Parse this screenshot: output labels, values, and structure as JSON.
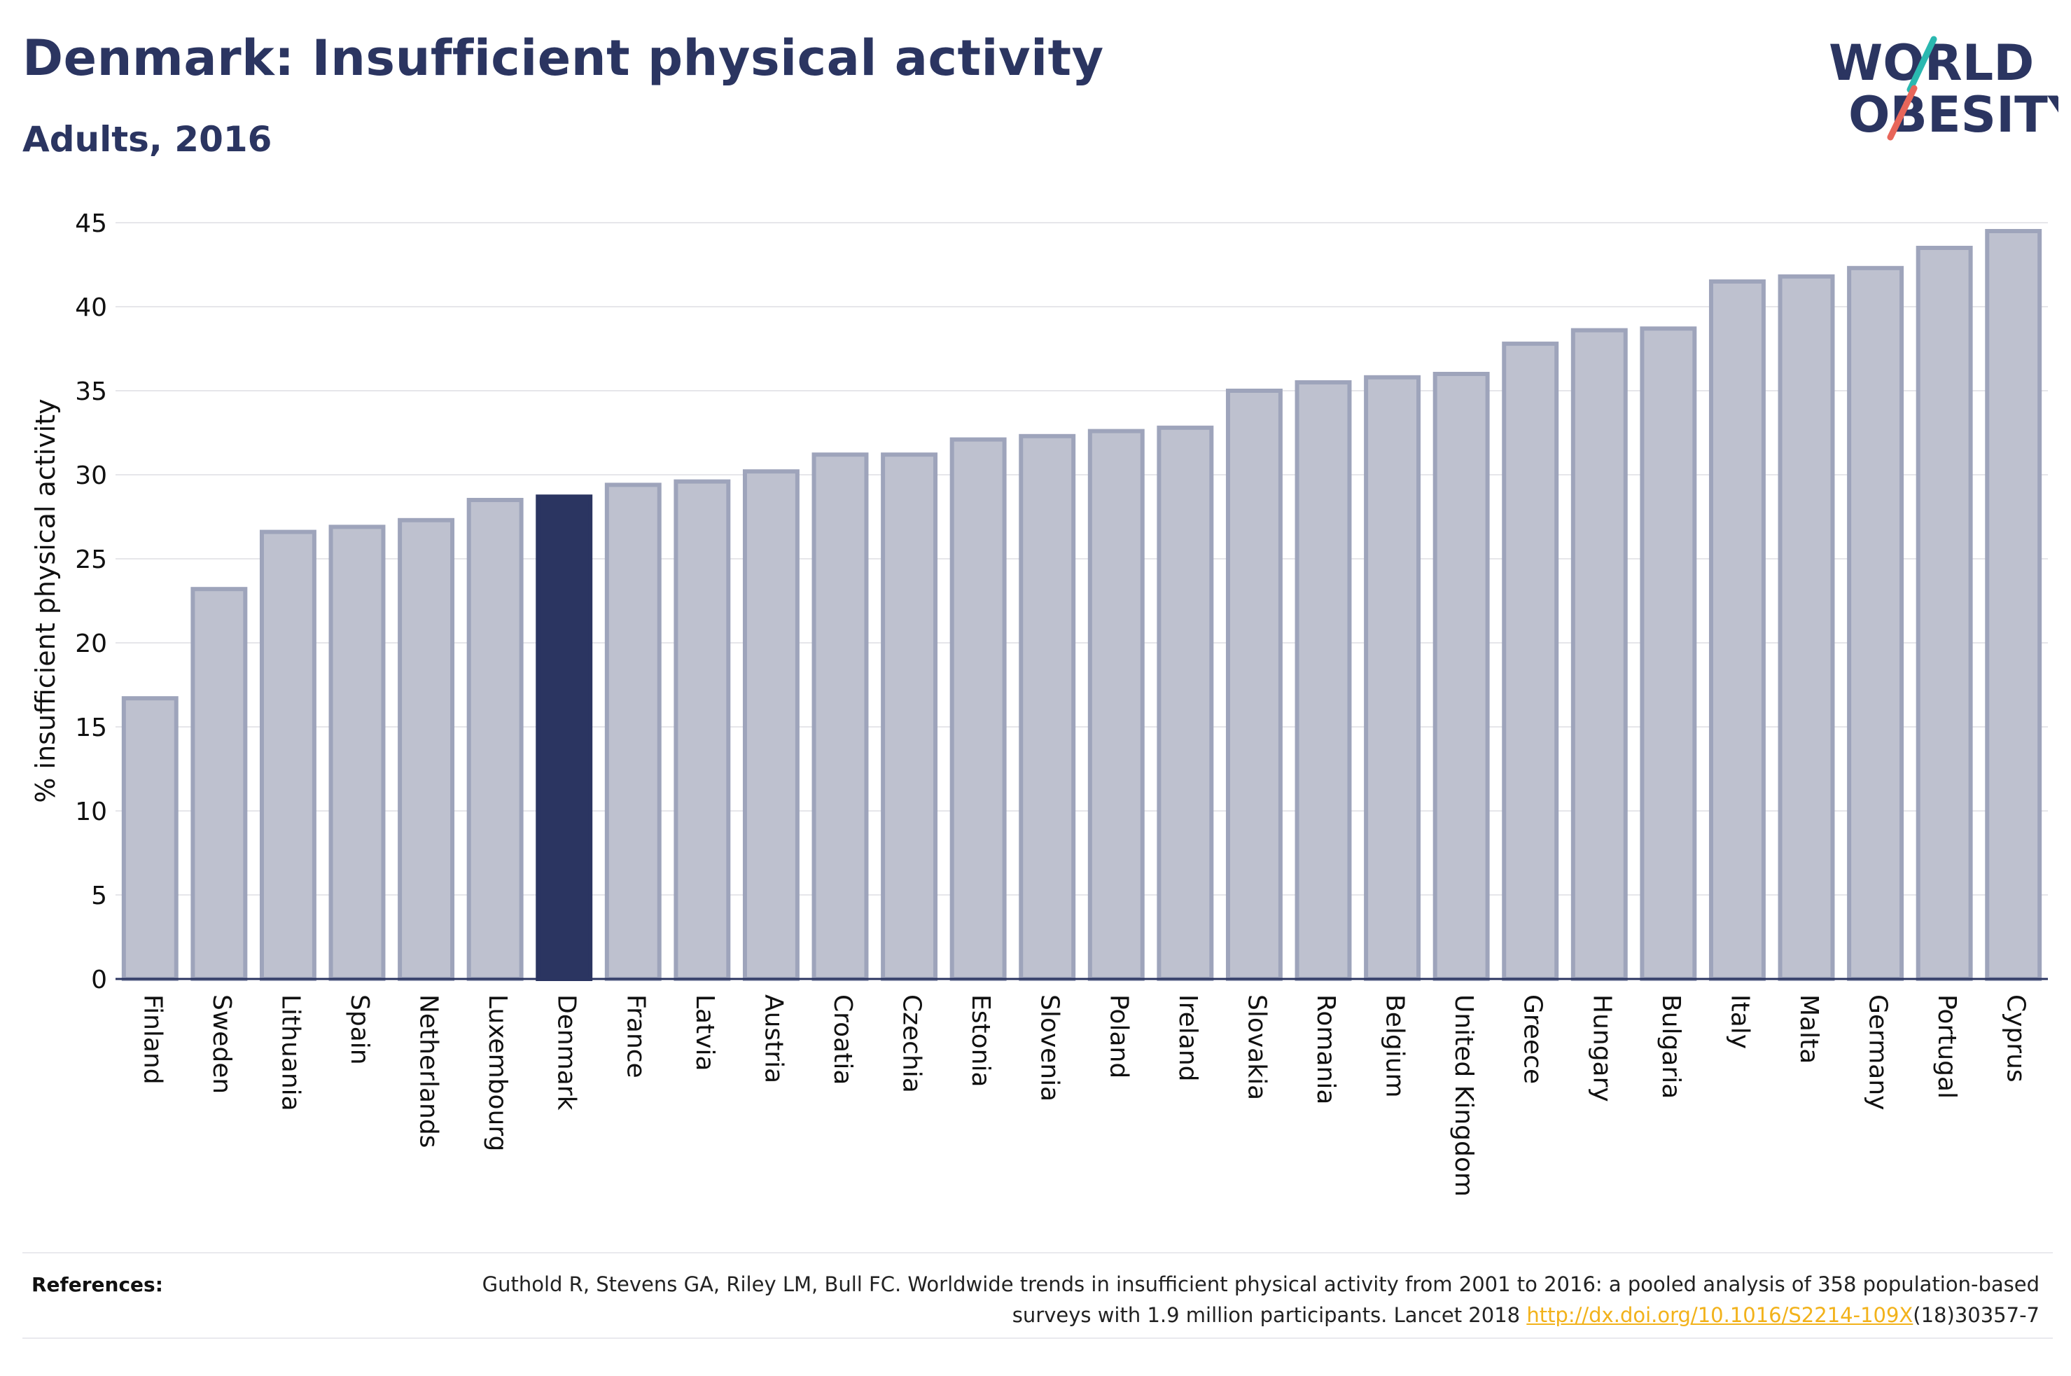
{
  "header": {
    "title": "Denmark: Insufficient physical activity",
    "subtitle": "Adults, 2016",
    "logo_text_line1": "WORLD",
    "logo_text_line2": "OBESITY"
  },
  "colors": {
    "bar_default": "#bec1cf",
    "bar_default_border": "#9ea4bb",
    "bar_highlight": "#2b3561",
    "title": "#2b3561",
    "link": "#f2b21b",
    "logo_teal": "#2ab8b0",
    "logo_coral": "#e8665a"
  },
  "chart_data": {
    "type": "bar",
    "title": "Denmark: Insufficient physical activity",
    "subtitle": "Adults, 2016",
    "ylabel": "% insufficient physical activity",
    "xlabel": "",
    "ylim": [
      0,
      45
    ],
    "yticks": [
      0,
      5,
      10,
      15,
      20,
      25,
      30,
      35,
      40,
      45
    ],
    "grid": true,
    "highlight": "Denmark",
    "categories": [
      "Finland",
      "Sweden",
      "Lithuania",
      "Spain",
      "Netherlands",
      "Luxembourg",
      "Denmark",
      "France",
      "Latvia",
      "Austria",
      "Croatia",
      "Czechia",
      "Estonia",
      "Slovenia",
      "Poland",
      "Ireland",
      "Slovakia",
      "Romania",
      "Belgium",
      "United Kingdom",
      "Greece",
      "Hungary",
      "Bulgaria",
      "Italy",
      "Malta",
      "Germany",
      "Portugal",
      "Cyprus"
    ],
    "values": [
      16.7,
      23.2,
      26.6,
      26.9,
      27.3,
      28.5,
      28.7,
      29.4,
      29.6,
      30.2,
      31.2,
      31.2,
      32.1,
      32.3,
      32.6,
      32.8,
      35.0,
      35.5,
      35.8,
      36.0,
      37.8,
      38.6,
      38.7,
      41.5,
      41.8,
      42.3,
      43.5,
      44.5
    ]
  },
  "references": {
    "label": "References:",
    "text_before_link": "Guthold R, Stevens GA, Riley LM, Bull FC. Worldwide trends in insufficient physical activity from 2001 to 2016: a pooled analysis of 358 population-based surveys with 1.9 million participants. Lancet 2018 ",
    "link_text": "http://dx.doi.org/10.1016/S2214-109X",
    "text_after_link": "(18)30357-7"
  }
}
